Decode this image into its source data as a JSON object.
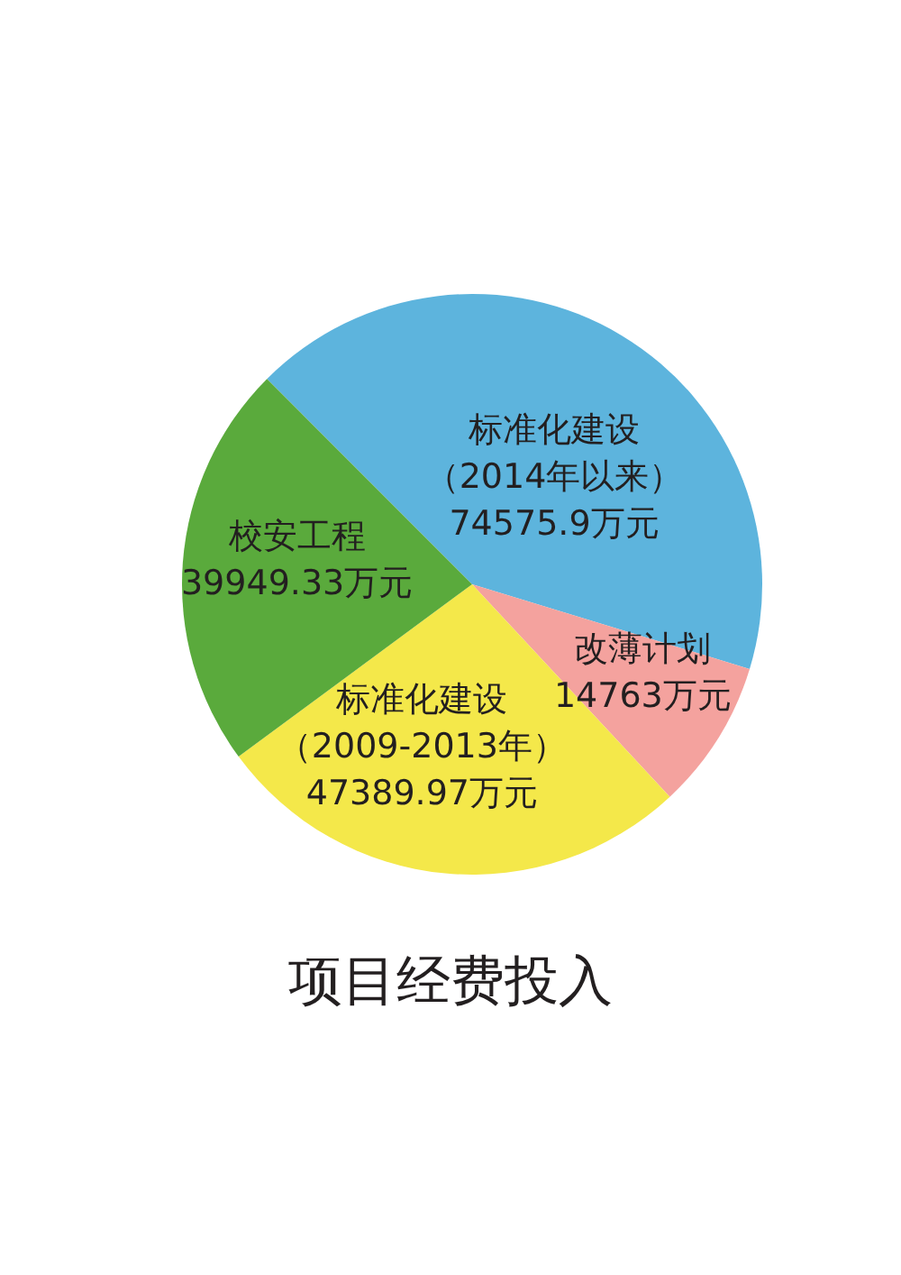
{
  "chart_data": {
    "type": "pie",
    "title": "项目经费投入",
    "categories": [
      "标准化建设（2014年以来）",
      "改薄计划",
      "标准化建设（2009-2013年）",
      "校安工程"
    ],
    "values": [
      74575.9,
      14763,
      47389.97,
      39949.33
    ],
    "colors": [
      "#5db4dd",
      "#f4a29e",
      "#f4e84a",
      "#5aaa3c"
    ],
    "value_labels": [
      "74575.9万元",
      "14763万元",
      "47389.97万元",
      "39949.33万元"
    ]
  }
}
